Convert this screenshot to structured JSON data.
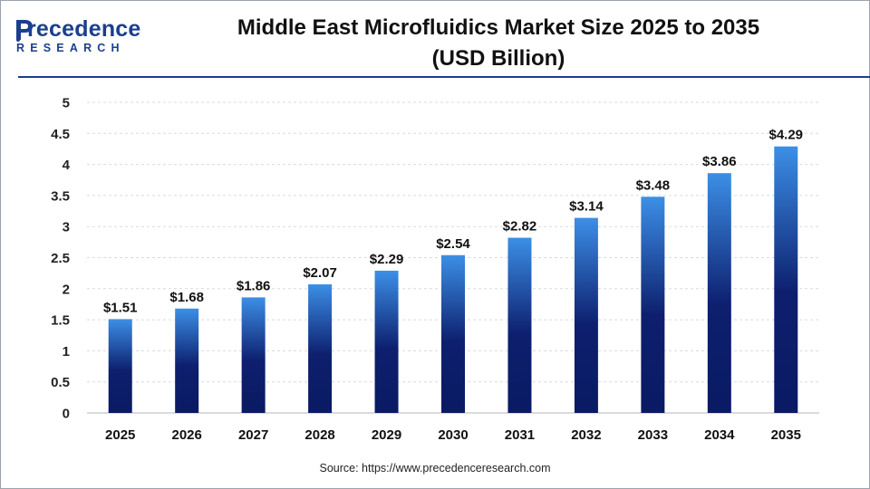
{
  "logo": {
    "main": "recedence",
    "sub": "RESEARCH"
  },
  "title_line1": "Middle East Microfluidics Market Size 2025 to 2035",
  "title_line2": "(USD Billion)",
  "source": "Source: https://www.precedenceresearch.com",
  "colors": {
    "brand": "#1b3f8f",
    "bar_top": "#3c8fe6",
    "bar_bottom": "#0a1a63"
  },
  "chart_data": {
    "type": "bar",
    "title": "Middle East Microfluidics Market Size 2025 to 2035 (USD Billion)",
    "categories": [
      "2025",
      "2026",
      "2027",
      "2028",
      "2029",
      "2030",
      "2031",
      "2032",
      "2033",
      "2034",
      "2035"
    ],
    "values": [
      1.51,
      1.68,
      1.86,
      2.07,
      2.29,
      2.54,
      2.82,
      3.14,
      3.48,
      3.86,
      4.29
    ],
    "value_labels": [
      "$1.51",
      "$1.68",
      "$1.86",
      "$2.07",
      "$2.29",
      "$2.54",
      "$2.82",
      "$3.14",
      "$3.48",
      "$3.86",
      "$4.29"
    ],
    "ylim": [
      0,
      5
    ],
    "yticks": [
      "0",
      "0.5",
      "1",
      "1.5",
      "2",
      "2.5",
      "3",
      "3.5",
      "4",
      "4.5",
      "5"
    ],
    "grid": true,
    "xlabel": "",
    "ylabel": ""
  }
}
